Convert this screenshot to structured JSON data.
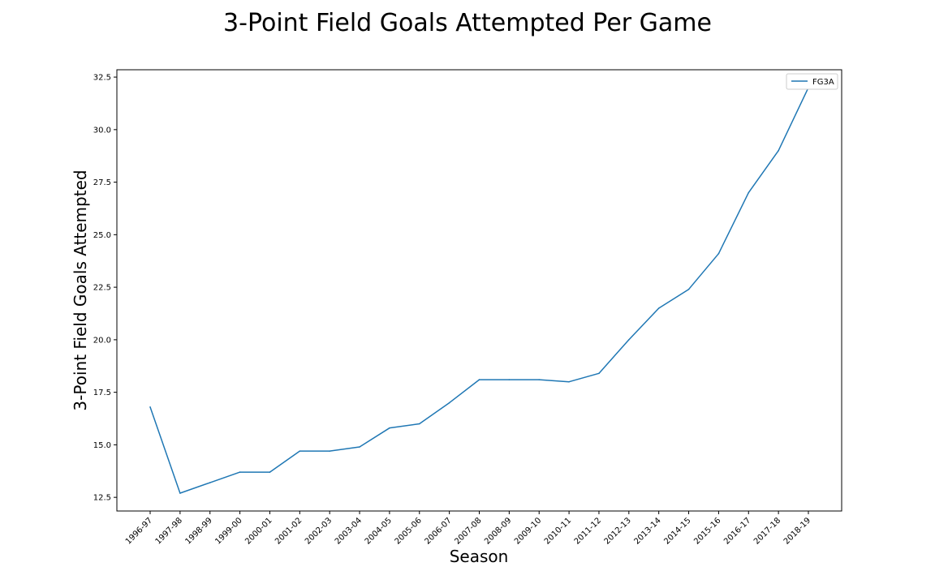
{
  "chart_data": {
    "type": "line",
    "title": "3-Point Field Goals Attempted Per Game",
    "xlabel": "Season",
    "ylabel": "3-Point Field Goals Attempted",
    "categories": [
      "1996-97",
      "1997-98",
      "1998-99",
      "1999-00",
      "2000-01",
      "2001-02",
      "2002-03",
      "2003-04",
      "2004-05",
      "2005-06",
      "2006-07",
      "2007-08",
      "2008-09",
      "2009-10",
      "2010-11",
      "2011-12",
      "2012-13",
      "2013-14",
      "2014-15",
      "2015-16",
      "2016-17",
      "2017-18",
      "2018-19"
    ],
    "series": [
      {
        "name": "FG3A",
        "values": [
          16.8,
          12.7,
          13.2,
          13.7,
          13.7,
          14.7,
          14.7,
          14.9,
          15.8,
          16.0,
          17.0,
          18.1,
          18.1,
          18.1,
          18.0,
          18.4,
          20.0,
          21.5,
          22.4,
          24.1,
          27.0,
          29.0,
          32.0
        ]
      }
    ],
    "yticks": [
      "12.5",
      "15.0",
      "17.5",
      "20.0",
      "22.5",
      "25.0",
      "27.5",
      "30.0",
      "32.5"
    ],
    "ylim": [
      11.85,
      32.85
    ],
    "grid": false,
    "legend_position": "upper right",
    "line_color": "#1f77b4"
  }
}
